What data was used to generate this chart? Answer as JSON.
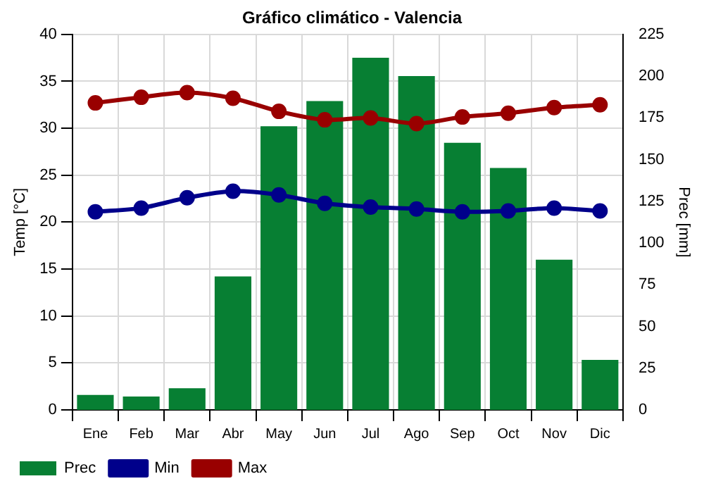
{
  "chart_data": {
    "type": "bar",
    "title": "Gráfico climático - Valencia",
    "ylabel": "Temp [°C]",
    "y2label": "Prec [mm]",
    "categories": [
      "Ene",
      "Feb",
      "Mar",
      "Abr",
      "May",
      "Jun",
      "Jul",
      "Ago",
      "Sep",
      "Oct",
      "Nov",
      "Dic"
    ],
    "series": [
      {
        "name": "Prec",
        "axis": "y2",
        "color": "#077f33",
        "values": [
          9,
          8,
          13,
          80,
          170,
          185,
          211,
          200,
          160,
          145,
          90,
          30
        ]
      },
      {
        "name": "Min",
        "type": "line",
        "color": "#00008b",
        "values": [
          21.1,
          21.5,
          22.6,
          23.3,
          22.9,
          22.0,
          21.6,
          21.4,
          21.1,
          21.2,
          21.5,
          21.2
        ]
      },
      {
        "name": "Max",
        "type": "line",
        "color": "#990000",
        "values": [
          32.7,
          33.3,
          33.8,
          33.2,
          31.8,
          30.9,
          31.1,
          30.5,
          31.2,
          31.6,
          32.2,
          32.5
        ]
      }
    ],
    "ylim": [
      0,
      40
    ],
    "yticks": [
      0,
      5,
      10,
      15,
      20,
      25,
      30,
      35,
      40
    ],
    "y2lim": [
      0,
      225
    ],
    "y2ticks": [
      0,
      25,
      50,
      75,
      100,
      125,
      150,
      175,
      200,
      225
    ],
    "grid": true,
    "legend": "bottom left",
    "marker": "circle",
    "line_style": "solid"
  }
}
